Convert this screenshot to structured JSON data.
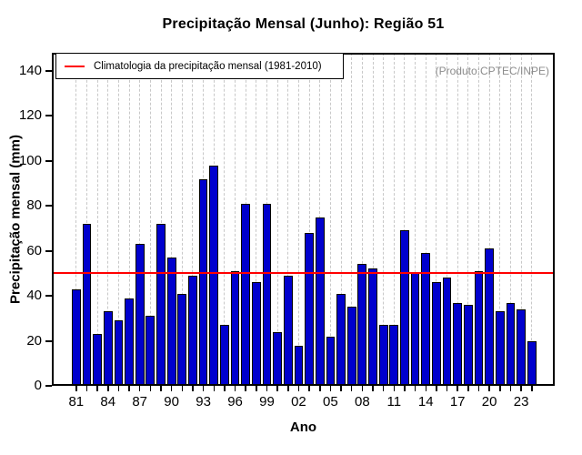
{
  "title": "Precipitação Mensal (Junho): Região 51",
  "annotation": "(Produto:CPTEC/INPE)",
  "legend": {
    "label": "Climatologia da precipitação mensal (1981-2010)"
  },
  "colors": {
    "bar_fill": "#0000cd",
    "bar_border": "#000000",
    "climatology_line": "#ff0000",
    "grid_line": "#c8c8c8",
    "annotation_text": "#8c8c8c"
  },
  "chart_data": {
    "type": "bar",
    "title": "Precipitação Mensal (Junho): Região 51",
    "xlabel": "Ano",
    "ylabel": "Precipitação mensal (mm)",
    "annotation": "(Produto:CPTEC/INPE)",
    "legend_entry": "Climatologia da precipitação mensal (1981-2010)",
    "legend_position": "top-left",
    "grid": "vertical dashed, one per year",
    "ylim": [
      0,
      148
    ],
    "yticks": [
      0,
      20,
      40,
      60,
      80,
      100,
      120,
      140
    ],
    "x_major_tick_labels": [
      "81",
      "84",
      "87",
      "90",
      "93",
      "96",
      "99",
      "02",
      "05",
      "08",
      "11",
      "14",
      "17",
      "20",
      "23"
    ],
    "years": [
      1981,
      1982,
      1983,
      1984,
      1985,
      1986,
      1987,
      1988,
      1989,
      1990,
      1991,
      1992,
      1993,
      1994,
      1995,
      1996,
      1997,
      1998,
      1999,
      2000,
      2001,
      2002,
      2003,
      2004,
      2005,
      2006,
      2007,
      2008,
      2009,
      2010,
      2011,
      2012,
      2013,
      2014,
      2015,
      2016,
      2017,
      2018,
      2019,
      2020,
      2021,
      2022,
      2023,
      2024
    ],
    "values": [
      43,
      72,
      23,
      33,
      29,
      39,
      63,
      31,
      72,
      57,
      41,
      49,
      92,
      98,
      27,
      51,
      81,
      46,
      81,
      24,
      49,
      18,
      68,
      75,
      22,
      41,
      35,
      54,
      52,
      27,
      27,
      69,
      50,
      59,
      46,
      48,
      37,
      36,
      51,
      61,
      33,
      37,
      34,
      20
    ],
    "climatology_value": 50
  }
}
